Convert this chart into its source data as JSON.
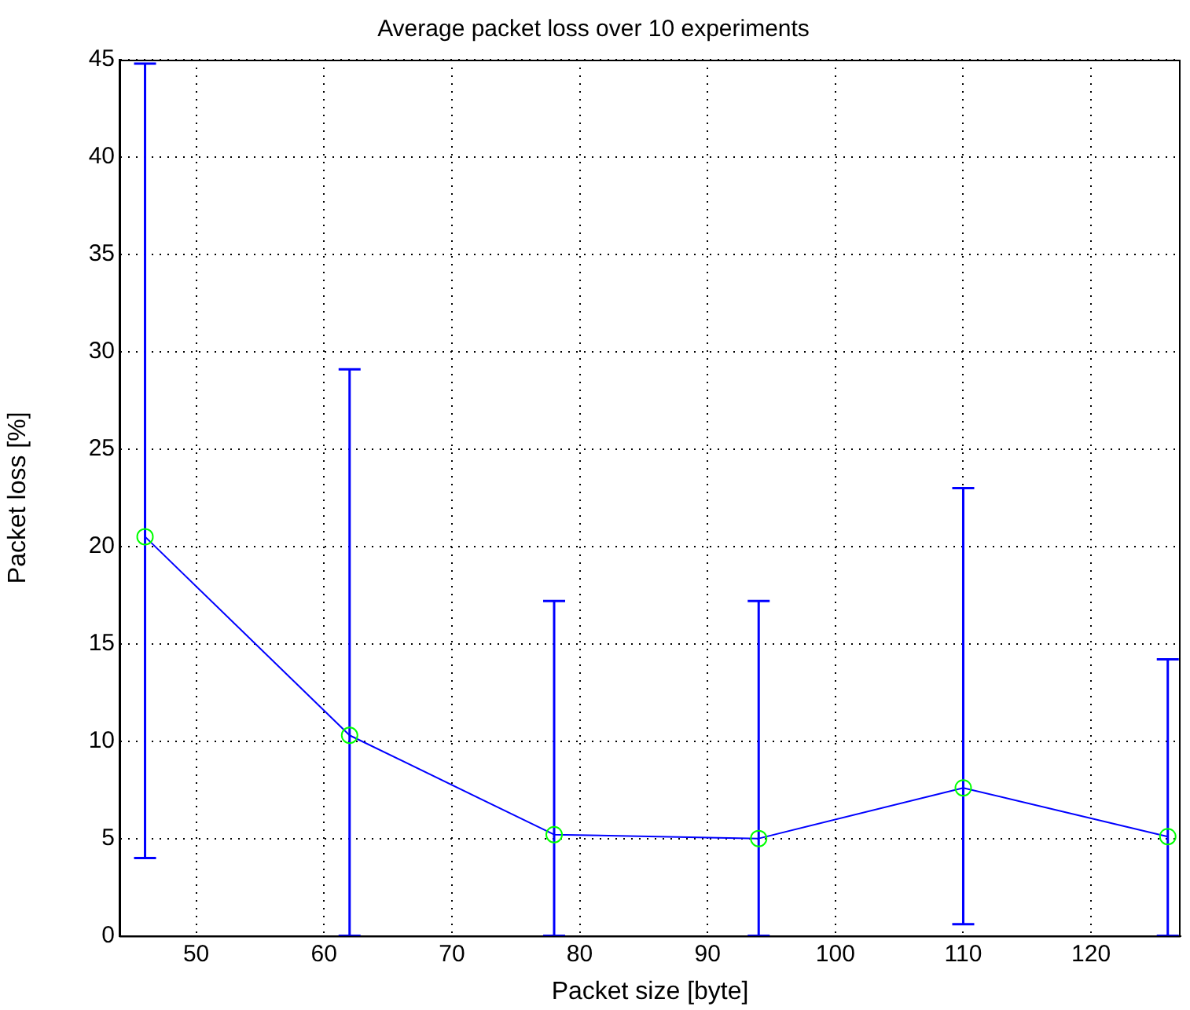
{
  "chart_data": {
    "type": "line",
    "title": "Average packet loss over 10 experiments",
    "xlabel": "Packet size [byte]",
    "ylabel": "Packet loss [%]",
    "x": [
      46,
      62,
      78,
      94,
      110,
      126
    ],
    "series": [
      {
        "color": "#0000ff",
        "values": [
          20.5,
          10.3,
          5.2,
          5.0,
          7.6,
          5.1
        ],
        "errors": [
          [
            4.0,
            44.8
          ],
          [
            0,
            29.1
          ],
          [
            0,
            17.2
          ],
          [
            0,
            17.2
          ],
          [
            0.6,
            23.0
          ],
          [
            0,
            14.2
          ]
        ]
      }
    ],
    "xlim": [
      44,
      127
    ],
    "xticks": [
      50,
      60,
      70,
      80,
      90,
      100,
      110,
      120
    ],
    "ylim": [
      0,
      45
    ],
    "yticks": [
      0,
      5,
      10,
      15,
      20,
      25,
      30,
      35,
      40,
      45
    ],
    "grid": true,
    "legend": false,
    "marker": "circle",
    "line_style": "solid"
  }
}
